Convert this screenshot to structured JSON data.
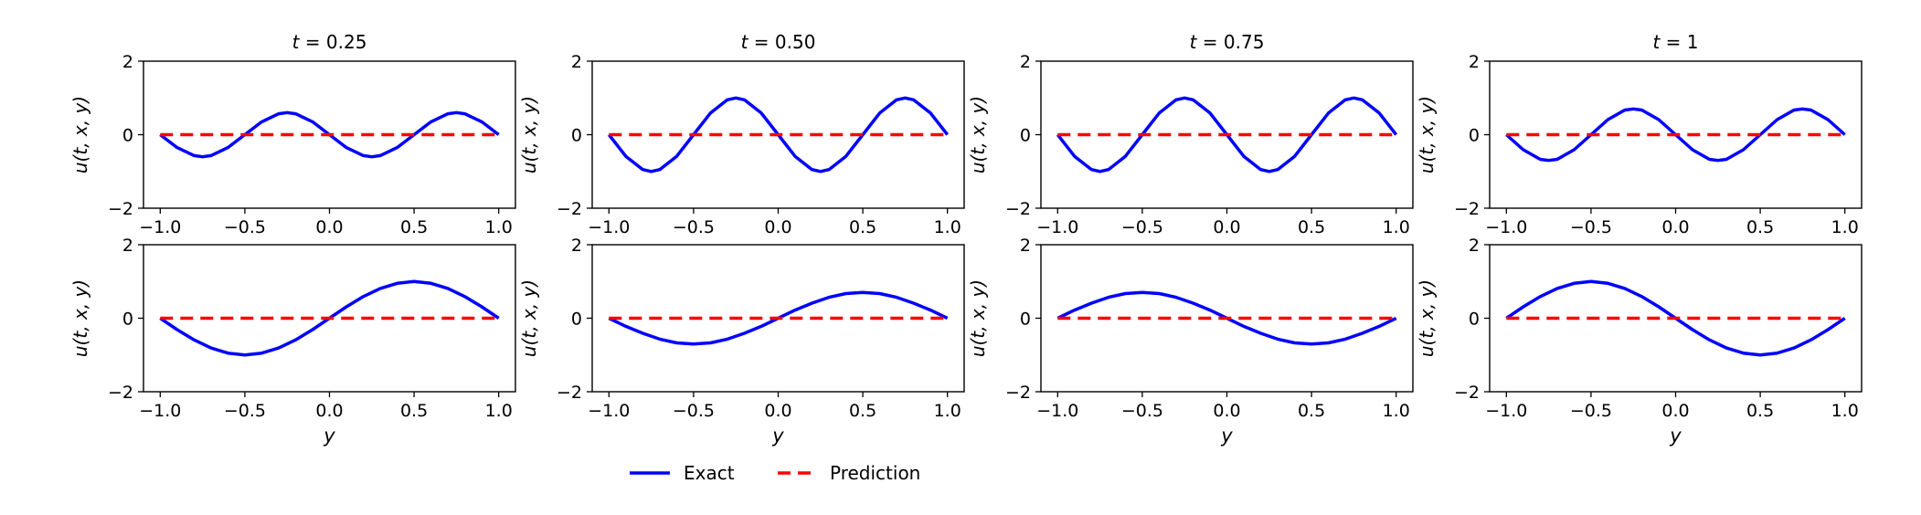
{
  "figure": {
    "legend_placement": "bottom-center",
    "legend": [
      {
        "label": "Exact",
        "color": "#0000ff",
        "dash": "solid"
      },
      {
        "label": "Prediction",
        "color": "#ff0000",
        "dash": "dashed"
      }
    ]
  },
  "chart_data": [
    {
      "type": "line",
      "title": "t = 0.25",
      "title_var": "t",
      "title_value": "0.25",
      "row": 0,
      "col": 0,
      "xlabel": "",
      "ylabel": "u(t, x, y)",
      "xlim": [
        -1.0,
        1.0
      ],
      "ylim": [
        -2,
        2
      ],
      "grid": false,
      "x_ticks": [
        "−1.0",
        "−0.5",
        "0.0",
        "0.5",
        "1.0"
      ],
      "y_ticks": [
        "−2",
        "0",
        "2"
      ],
      "series": [
        {
          "name": "Exact",
          "color": "#0000ff",
          "x": [
            -1.0,
            -0.9,
            -0.8,
            -0.75,
            -0.7,
            -0.6,
            -0.5,
            -0.4,
            -0.3,
            -0.25,
            -0.2,
            -0.1,
            0.0,
            0.1,
            0.2,
            0.25,
            0.3,
            0.4,
            0.5,
            0.6,
            0.7,
            0.75,
            0.8,
            0.9,
            1.0
          ],
          "y": [
            0,
            -0.35,
            -0.57,
            -0.6,
            -0.57,
            -0.35,
            0,
            0.35,
            0.57,
            0.6,
            0.57,
            0.35,
            0,
            -0.35,
            -0.57,
            -0.6,
            -0.57,
            -0.35,
            0,
            0.35,
            0.57,
            0.6,
            0.57,
            0.35,
            0
          ]
        },
        {
          "name": "Prediction",
          "color": "#ff0000",
          "x": [
            -1.0,
            1.0
          ],
          "y": [
            0,
            0
          ]
        }
      ]
    },
    {
      "type": "line",
      "title": "t = 0.50",
      "title_var": "t",
      "title_value": "0.50",
      "row": 0,
      "col": 1,
      "xlabel": "",
      "ylabel": "u(t, x, y)",
      "xlim": [
        -1.0,
        1.0
      ],
      "ylim": [
        -2,
        2
      ],
      "grid": false,
      "x_ticks": [
        "−1.0",
        "−0.5",
        "0.0",
        "0.5",
        "1.0"
      ],
      "y_ticks": [
        "−2",
        "0",
        "2"
      ],
      "series": [
        {
          "name": "Exact",
          "color": "#0000ff",
          "x": [
            -1.0,
            -0.9,
            -0.8,
            -0.75,
            -0.7,
            -0.6,
            -0.5,
            -0.4,
            -0.3,
            -0.25,
            -0.2,
            -0.1,
            0.0,
            0.1,
            0.2,
            0.25,
            0.3,
            0.4,
            0.5,
            0.6,
            0.7,
            0.75,
            0.8,
            0.9,
            1.0
          ],
          "y": [
            0,
            -0.59,
            -0.95,
            -1.0,
            -0.95,
            -0.59,
            0,
            0.59,
            0.95,
            1.0,
            0.95,
            0.59,
            0,
            -0.59,
            -0.95,
            -1.0,
            -0.95,
            -0.59,
            0,
            0.59,
            0.95,
            1.0,
            0.95,
            0.59,
            0
          ]
        },
        {
          "name": "Prediction",
          "color": "#ff0000",
          "x": [
            -1.0,
            1.0
          ],
          "y": [
            0,
            0
          ]
        }
      ]
    },
    {
      "type": "line",
      "title": "t = 0.75",
      "title_var": "t",
      "title_value": "0.75",
      "row": 0,
      "col": 2,
      "xlabel": "",
      "ylabel": "u(t, x, y)",
      "xlim": [
        -1.0,
        1.0
      ],
      "ylim": [
        -2,
        2
      ],
      "grid": false,
      "x_ticks": [
        "−1.0",
        "−0.5",
        "0.0",
        "0.5",
        "1.0"
      ],
      "y_ticks": [
        "−2",
        "0",
        "2"
      ],
      "series": [
        {
          "name": "Exact",
          "color": "#0000ff",
          "x": [
            -1.0,
            -0.9,
            -0.8,
            -0.75,
            -0.7,
            -0.6,
            -0.5,
            -0.4,
            -0.3,
            -0.25,
            -0.2,
            -0.1,
            0.0,
            0.1,
            0.2,
            0.25,
            0.3,
            0.4,
            0.5,
            0.6,
            0.7,
            0.75,
            0.8,
            0.9,
            1.0
          ],
          "y": [
            0,
            -0.59,
            -0.95,
            -1.0,
            -0.95,
            -0.59,
            0,
            0.59,
            0.95,
            1.0,
            0.95,
            0.59,
            0,
            -0.59,
            -0.95,
            -1.0,
            -0.95,
            -0.59,
            0,
            0.59,
            0.95,
            1.0,
            0.95,
            0.59,
            0
          ]
        },
        {
          "name": "Prediction",
          "color": "#ff0000",
          "x": [
            -1.0,
            1.0
          ],
          "y": [
            0,
            0
          ]
        }
      ]
    },
    {
      "type": "line",
      "title": "t = 1",
      "title_var": "t",
      "title_value": "1",
      "row": 0,
      "col": 3,
      "xlabel": "",
      "ylabel": "u(t, x, y)",
      "xlim": [
        -1.0,
        1.0
      ],
      "ylim": [
        -2,
        2
      ],
      "grid": false,
      "x_ticks": [
        "−1.0",
        "−0.5",
        "0.0",
        "0.5",
        "1.0"
      ],
      "y_ticks": [
        "−2",
        "0",
        "2"
      ],
      "series": [
        {
          "name": "Exact",
          "color": "#0000ff",
          "x": [
            -1.0,
            -0.9,
            -0.8,
            -0.75,
            -0.7,
            -0.6,
            -0.5,
            -0.4,
            -0.3,
            -0.25,
            -0.2,
            -0.1,
            0.0,
            0.1,
            0.2,
            0.25,
            0.3,
            0.4,
            0.5,
            0.6,
            0.7,
            0.75,
            0.8,
            0.9,
            1.0
          ],
          "y": [
            0,
            -0.41,
            -0.67,
            -0.7,
            -0.67,
            -0.41,
            0,
            0.41,
            0.67,
            0.7,
            0.67,
            0.41,
            0,
            -0.41,
            -0.67,
            -0.7,
            -0.67,
            -0.41,
            0,
            0.41,
            0.67,
            0.7,
            0.67,
            0.41,
            0
          ]
        },
        {
          "name": "Prediction",
          "color": "#ff0000",
          "x": [
            -1.0,
            1.0
          ],
          "y": [
            0,
            0
          ]
        }
      ]
    },
    {
      "type": "line",
      "title": "",
      "row": 1,
      "col": 0,
      "xlabel": "y",
      "ylabel": "u(t, x, y)",
      "xlim": [
        -1.0,
        1.0
      ],
      "ylim": [
        -2,
        2
      ],
      "grid": false,
      "x_ticks": [
        "−1.0",
        "−0.5",
        "0.0",
        "0.5",
        "1.0"
      ],
      "y_ticks": [
        "−2",
        "0",
        "2"
      ],
      "series": [
        {
          "name": "Exact",
          "color": "#0000ff",
          "x": [
            -1.0,
            -0.9,
            -0.8,
            -0.7,
            -0.6,
            -0.5,
            -0.4,
            -0.3,
            -0.2,
            -0.1,
            0.0,
            0.1,
            0.2,
            0.3,
            0.4,
            0.5,
            0.6,
            0.7,
            0.8,
            0.9,
            1.0
          ],
          "y": [
            0,
            -0.31,
            -0.59,
            -0.81,
            -0.95,
            -1.0,
            -0.95,
            -0.81,
            -0.59,
            -0.31,
            0,
            0.31,
            0.59,
            0.81,
            0.95,
            1.0,
            0.95,
            0.81,
            0.59,
            0.31,
            0
          ]
        },
        {
          "name": "Prediction",
          "color": "#ff0000",
          "x": [
            -1.0,
            1.0
          ],
          "y": [
            0,
            0
          ]
        }
      ]
    },
    {
      "type": "line",
      "title": "",
      "row": 1,
      "col": 1,
      "xlabel": "y",
      "ylabel": "u(t, x, y)",
      "xlim": [
        -1.0,
        1.0
      ],
      "ylim": [
        -2,
        2
      ],
      "grid": false,
      "x_ticks": [
        "−1.0",
        "−0.5",
        "0.0",
        "0.5",
        "1.0"
      ],
      "y_ticks": [
        "−2",
        "0",
        "2"
      ],
      "series": [
        {
          "name": "Exact",
          "color": "#0000ff",
          "x": [
            -1.0,
            -0.9,
            -0.8,
            -0.7,
            -0.6,
            -0.5,
            -0.4,
            -0.3,
            -0.2,
            -0.1,
            0.0,
            0.1,
            0.2,
            0.3,
            0.4,
            0.5,
            0.6,
            0.7,
            0.8,
            0.9,
            1.0
          ],
          "y": [
            0,
            -0.22,
            -0.41,
            -0.57,
            -0.67,
            -0.7,
            -0.67,
            -0.57,
            -0.41,
            -0.22,
            0,
            0.22,
            0.41,
            0.57,
            0.67,
            0.7,
            0.67,
            0.57,
            0.41,
            0.22,
            0
          ]
        },
        {
          "name": "Prediction",
          "color": "#ff0000",
          "x": [
            -1.0,
            1.0
          ],
          "y": [
            0,
            0
          ]
        }
      ]
    },
    {
      "type": "line",
      "title": "",
      "row": 1,
      "col": 2,
      "xlabel": "y",
      "ylabel": "u(t, x, y)",
      "xlim": [
        -1.0,
        1.0
      ],
      "ylim": [
        -2,
        2
      ],
      "grid": false,
      "x_ticks": [
        "−1.0",
        "−0.5",
        "0.0",
        "0.5",
        "1.0"
      ],
      "y_ticks": [
        "−2",
        "0",
        "2"
      ],
      "series": [
        {
          "name": "Exact",
          "color": "#0000ff",
          "x": [
            -1.0,
            -0.9,
            -0.8,
            -0.7,
            -0.6,
            -0.5,
            -0.4,
            -0.3,
            -0.2,
            -0.1,
            0.0,
            0.1,
            0.2,
            0.3,
            0.4,
            0.5,
            0.6,
            0.7,
            0.8,
            0.9,
            1.0
          ],
          "y": [
            0,
            0.22,
            0.41,
            0.57,
            0.67,
            0.7,
            0.67,
            0.57,
            0.41,
            0.22,
            0,
            -0.22,
            -0.41,
            -0.57,
            -0.67,
            -0.7,
            -0.67,
            -0.57,
            -0.41,
            -0.22,
            0
          ]
        },
        {
          "name": "Prediction",
          "color": "#ff0000",
          "x": [
            -1.0,
            1.0
          ],
          "y": [
            0,
            0
          ]
        }
      ]
    },
    {
      "type": "line",
      "title": "",
      "row": 1,
      "col": 3,
      "xlabel": "y",
      "ylabel": "u(t, x, y)",
      "xlim": [
        -1.0,
        1.0
      ],
      "ylim": [
        -2,
        2
      ],
      "grid": false,
      "x_ticks": [
        "−1.0",
        "−0.5",
        "0.0",
        "0.5",
        "1.0"
      ],
      "y_ticks": [
        "−2",
        "0",
        "2"
      ],
      "series": [
        {
          "name": "Exact",
          "color": "#0000ff",
          "x": [
            -1.0,
            -0.9,
            -0.8,
            -0.7,
            -0.6,
            -0.5,
            -0.4,
            -0.3,
            -0.2,
            -0.1,
            0.0,
            0.1,
            0.2,
            0.3,
            0.4,
            0.5,
            0.6,
            0.7,
            0.8,
            0.9,
            1.0
          ],
          "y": [
            0,
            0.31,
            0.59,
            0.81,
            0.95,
            1.0,
            0.95,
            0.81,
            0.59,
            0.31,
            0,
            -0.31,
            -0.59,
            -0.81,
            -0.95,
            -1.0,
            -0.95,
            -0.81,
            -0.59,
            -0.31,
            0
          ]
        },
        {
          "name": "Prediction",
          "color": "#ff0000",
          "x": [
            -1.0,
            1.0
          ],
          "y": [
            0,
            0
          ]
        }
      ]
    }
  ]
}
